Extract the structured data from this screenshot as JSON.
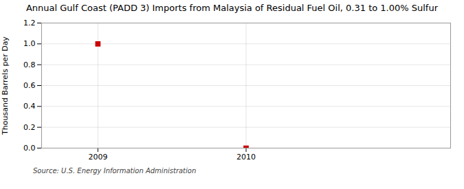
{
  "chart_data": {
    "type": "scatter",
    "title": "Annual Gulf Coast (PADD 3) Imports from Malaysia of Residual Fuel Oil, 0.31 to 1.00% Sulfur",
    "ylabel": "Thousand Barrels per Day",
    "source": "Source: U.S. Energy Information Administration",
    "x": [
      2009,
      2010
    ],
    "values": [
      1.0,
      0.0
    ],
    "color": "#CC0000",
    "marker": "square",
    "xlim": [
      2008.62,
      2011.38
    ],
    "ylim": [
      0.0,
      1.2
    ],
    "xticks": [
      2009,
      2010
    ],
    "yticks": [
      {
        "value": 0.0,
        "label": "0.0"
      },
      0.2,
      0.4,
      0.6,
      0.8,
      {
        "value": 1.0,
        "label": "1.0"
      },
      1.2
    ],
    "grid": true
  }
}
